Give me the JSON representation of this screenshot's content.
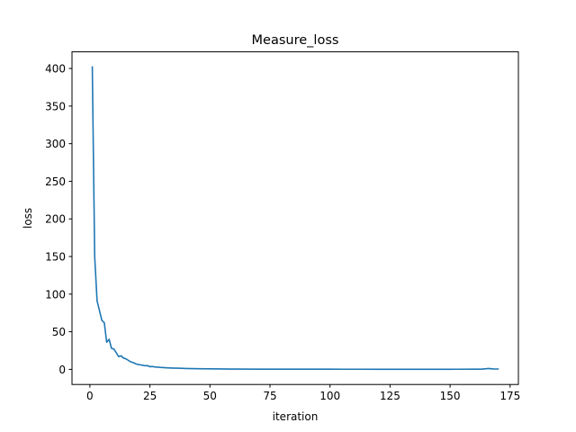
{
  "chart_data": {
    "type": "line",
    "title": "Measure_loss",
    "xlabel": "iteration",
    "ylabel": "loss",
    "xlim": [
      -7.45,
      178.45
    ],
    "ylim": [
      -20.1,
      422.1
    ],
    "grid": false,
    "xticks": [
      0,
      25,
      50,
      75,
      100,
      125,
      150,
      175
    ],
    "yticks": [
      0,
      50,
      100,
      150,
      200,
      250,
      300,
      350,
      400
    ],
    "series": [
      {
        "color": "#1f77b4",
        "x": [
          1,
          2,
          3,
          4,
          5,
          6,
          7,
          8,
          9,
          10,
          11,
          12,
          13,
          14,
          15,
          16,
          17,
          18,
          19,
          20,
          21,
          22,
          23,
          24,
          25,
          26,
          27,
          28,
          29,
          30,
          32,
          34,
          36,
          38,
          40,
          45,
          50,
          55,
          60,
          70,
          80,
          90,
          100,
          110,
          120,
          130,
          140,
          150,
          160,
          163,
          165,
          166,
          167,
          168,
          170
        ],
        "y": [
          402,
          150,
          91,
          78,
          65,
          62,
          36,
          40,
          28,
          27,
          22,
          17,
          18,
          15,
          14,
          12,
          10,
          9,
          7.5,
          6.5,
          6,
          5.5,
          4.8,
          5,
          3.5,
          3.8,
          3.2,
          3,
          2.6,
          2.5,
          2.1,
          1.8,
          1.6,
          1.4,
          1.2,
          0.9,
          0.7,
          0.5,
          0.4,
          0.3,
          0.25,
          0.2,
          0.2,
          0.18,
          0.15,
          0.15,
          0.15,
          0.15,
          0.2,
          0.3,
          0.8,
          1.2,
          0.9,
          0.6,
          0.5
        ]
      }
    ]
  }
}
